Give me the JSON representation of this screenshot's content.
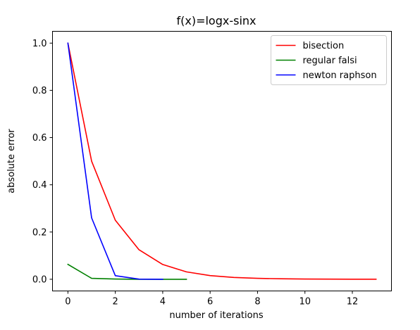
{
  "chart_data": {
    "type": "line",
    "title": "f(x)=logx-sinx",
    "xlabel": "number of iterations",
    "ylabel": "absolute error",
    "xlim": [
      -0.65,
      13.65
    ],
    "ylim": [
      -0.0495,
      1.05
    ],
    "xticks": [
      0,
      2,
      4,
      6,
      8,
      10,
      12
    ],
    "yticks": [
      0.0,
      0.2,
      0.4,
      0.6,
      0.8,
      1.0
    ],
    "xtick_labels": [
      "0",
      "2",
      "4",
      "6",
      "8",
      "10",
      "12"
    ],
    "ytick_labels": [
      "0.0",
      "0.2",
      "0.4",
      "0.6",
      "0.8",
      "1.0"
    ],
    "grid": false,
    "legend_position": "top-right",
    "series": [
      {
        "name": "bisection",
        "color": "#ff0000",
        "x": [
          0,
          1,
          2,
          3,
          4,
          5,
          6,
          7,
          8,
          9,
          10,
          11,
          12,
          13
        ],
        "y": [
          1.0,
          0.5,
          0.25,
          0.125,
          0.0625,
          0.0313,
          0.0156,
          0.0078,
          0.0039,
          0.002,
          0.001,
          0.0005,
          0.0002,
          0.0001
        ]
      },
      {
        "name": "regular falsi",
        "color": "#008000",
        "x": [
          0,
          1,
          2,
          3,
          4,
          5
        ],
        "y": [
          0.063,
          0.004,
          0.001,
          0.0,
          0.0,
          0.0
        ]
      },
      {
        "name": "newton raphson",
        "color": "#0000ff",
        "x": [
          0,
          1,
          2,
          3,
          4
        ],
        "y": [
          1.0,
          0.26,
          0.015,
          0.0005,
          0.0
        ]
      }
    ]
  }
}
